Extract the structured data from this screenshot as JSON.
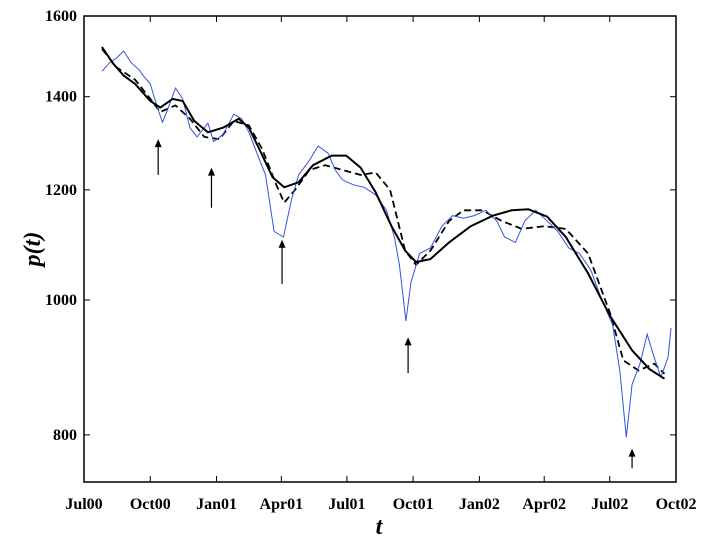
{
  "chart_data": {
    "type": "line",
    "title": "",
    "xlabel": "t",
    "ylabel": "p(t)",
    "x_tick_labels": [
      "Jul00",
      "Oct00",
      "Jan01",
      "Apr01",
      "Jul01",
      "Oct01",
      "Jan02",
      "Apr02",
      "Jul02",
      "Oct02"
    ],
    "x_tick_dates": [
      "2000-07-01",
      "2000-10-01",
      "2001-01-01",
      "2001-04-01",
      "2001-07-01",
      "2001-10-01",
      "2002-01-01",
      "2002-04-01",
      "2002-07-01",
      "2002-10-01"
    ],
    "xlim": [
      "2000-07-01",
      "2002-10-01"
    ],
    "y_scale": "log",
    "y_ticks": [
      800,
      1000,
      1200,
      1400,
      1600
    ],
    "ylim": [
      740,
      1600
    ],
    "grid": false,
    "series": [
      {
        "role": "observed",
        "color": "#3355dd",
        "points": [
          [
            "2000-07-26",
            1460
          ],
          [
            "2000-08-05",
            1480
          ],
          [
            "2000-08-15",
            1492
          ],
          [
            "2000-08-25",
            1510
          ],
          [
            "2000-09-05",
            1480
          ],
          [
            "2000-09-15",
            1465
          ],
          [
            "2000-09-22",
            1448
          ],
          [
            "2000-10-01",
            1430
          ],
          [
            "2000-10-10",
            1380
          ],
          [
            "2000-10-18",
            1342
          ],
          [
            "2000-10-25",
            1370
          ],
          [
            "2000-11-05",
            1420
          ],
          [
            "2000-11-15",
            1395
          ],
          [
            "2000-11-25",
            1330
          ],
          [
            "2000-12-05",
            1310
          ],
          [
            "2000-12-20",
            1340
          ],
          [
            "2000-12-28",
            1300
          ],
          [
            "2001-01-10",
            1315
          ],
          [
            "2001-01-25",
            1360
          ],
          [
            "2001-02-05",
            1350
          ],
          [
            "2001-02-15",
            1320
          ],
          [
            "2001-02-25",
            1280
          ],
          [
            "2001-03-10",
            1230
          ],
          [
            "2001-03-22",
            1120
          ],
          [
            "2001-04-04",
            1110
          ],
          [
            "2001-04-15",
            1180
          ],
          [
            "2001-04-25",
            1230
          ],
          [
            "2001-05-10",
            1260
          ],
          [
            "2001-05-22",
            1290
          ],
          [
            "2001-06-05",
            1275
          ],
          [
            "2001-06-15",
            1240
          ],
          [
            "2001-06-25",
            1220
          ],
          [
            "2001-07-10",
            1210
          ],
          [
            "2001-07-25",
            1205
          ],
          [
            "2001-08-10",
            1190
          ],
          [
            "2001-08-25",
            1160
          ],
          [
            "2001-09-05",
            1110
          ],
          [
            "2001-09-12",
            1060
          ],
          [
            "2001-09-21",
            966
          ],
          [
            "2001-09-28",
            1030
          ],
          [
            "2001-10-10",
            1080
          ],
          [
            "2001-10-25",
            1090
          ],
          [
            "2001-11-10",
            1130
          ],
          [
            "2001-11-25",
            1150
          ],
          [
            "2001-12-10",
            1145
          ],
          [
            "2001-12-25",
            1150
          ],
          [
            "2002-01-10",
            1160
          ],
          [
            "2002-01-25",
            1140
          ],
          [
            "2002-02-05",
            1110
          ],
          [
            "2002-02-20",
            1100
          ],
          [
            "2002-03-05",
            1140
          ],
          [
            "2002-03-20",
            1160
          ],
          [
            "2002-04-05",
            1140
          ],
          [
            "2002-04-20",
            1120
          ],
          [
            "2002-05-05",
            1090
          ],
          [
            "2002-05-20",
            1080
          ],
          [
            "2002-06-05",
            1050
          ],
          [
            "2002-06-20",
            1000
          ],
          [
            "2002-07-05",
            960
          ],
          [
            "2002-07-15",
            890
          ],
          [
            "2002-07-24",
            797
          ],
          [
            "2002-08-01",
            870
          ],
          [
            "2002-08-12",
            900
          ],
          [
            "2002-08-22",
            945
          ],
          [
            "2002-08-30",
            915
          ],
          [
            "2002-09-10",
            880
          ],
          [
            "2002-09-20",
            910
          ],
          [
            "2002-09-24",
            955
          ]
        ]
      },
      {
        "role": "fit-solid",
        "color": "#000000",
        "points": [
          [
            "2000-07-26",
            1520
          ],
          [
            "2000-08-10",
            1480
          ],
          [
            "2000-08-25",
            1450
          ],
          [
            "2000-09-10",
            1430
          ],
          [
            "2000-10-01",
            1390
          ],
          [
            "2000-10-15",
            1375
          ],
          [
            "2000-11-01",
            1395
          ],
          [
            "2000-11-15",
            1390
          ],
          [
            "2000-12-01",
            1345
          ],
          [
            "2000-12-20",
            1320
          ],
          [
            "2001-01-10",
            1330
          ],
          [
            "2001-02-01",
            1350
          ],
          [
            "2001-02-15",
            1330
          ],
          [
            "2001-03-01",
            1285
          ],
          [
            "2001-03-20",
            1225
          ],
          [
            "2001-04-05",
            1205
          ],
          [
            "2001-04-25",
            1215
          ],
          [
            "2001-05-15",
            1250
          ],
          [
            "2001-06-10",
            1270
          ],
          [
            "2001-06-30",
            1270
          ],
          [
            "2001-07-20",
            1245
          ],
          [
            "2001-08-10",
            1195
          ],
          [
            "2001-09-01",
            1130
          ],
          [
            "2001-09-20",
            1085
          ],
          [
            "2001-10-05",
            1065
          ],
          [
            "2001-10-25",
            1070
          ],
          [
            "2001-11-20",
            1100
          ],
          [
            "2001-12-20",
            1130
          ],
          [
            "2002-01-20",
            1150
          ],
          [
            "2002-02-15",
            1160
          ],
          [
            "2002-03-10",
            1162
          ],
          [
            "2002-04-05",
            1148
          ],
          [
            "2002-05-01",
            1110
          ],
          [
            "2002-06-01",
            1045
          ],
          [
            "2002-07-01",
            975
          ],
          [
            "2002-08-01",
            920
          ],
          [
            "2002-08-25",
            892
          ],
          [
            "2002-09-15",
            878
          ]
        ]
      },
      {
        "role": "fit-dashed",
        "color": "#000000",
        "points": [
          [
            "2000-07-26",
            1515
          ],
          [
            "2000-08-15",
            1470
          ],
          [
            "2000-09-10",
            1440
          ],
          [
            "2000-10-01",
            1395
          ],
          [
            "2000-10-15",
            1365
          ],
          [
            "2000-11-05",
            1380
          ],
          [
            "2000-11-25",
            1350
          ],
          [
            "2000-12-15",
            1310
          ],
          [
            "2001-01-05",
            1305
          ],
          [
            "2001-01-25",
            1345
          ],
          [
            "2001-02-15",
            1335
          ],
          [
            "2001-03-05",
            1285
          ],
          [
            "2001-03-25",
            1210
          ],
          [
            "2001-04-05",
            1175
          ],
          [
            "2001-04-20",
            1200
          ],
          [
            "2001-05-10",
            1240
          ],
          [
            "2001-06-01",
            1250
          ],
          [
            "2001-06-25",
            1240
          ],
          [
            "2001-07-20",
            1230
          ],
          [
            "2001-08-10",
            1235
          ],
          [
            "2001-08-30",
            1200
          ],
          [
            "2001-09-20",
            1085
          ],
          [
            "2001-10-05",
            1060
          ],
          [
            "2001-10-25",
            1085
          ],
          [
            "2001-11-20",
            1140
          ],
          [
            "2001-12-10",
            1160
          ],
          [
            "2002-01-05",
            1160
          ],
          [
            "2002-02-01",
            1140
          ],
          [
            "2002-03-01",
            1125
          ],
          [
            "2002-04-01",
            1130
          ],
          [
            "2002-05-01",
            1125
          ],
          [
            "2002-06-01",
            1080
          ],
          [
            "2002-07-01",
            980
          ],
          [
            "2002-07-20",
            905
          ],
          [
            "2002-08-10",
            890
          ],
          [
            "2002-09-01",
            900
          ],
          [
            "2002-09-15",
            885
          ]
        ]
      }
    ],
    "arrows": [
      {
        "date": "2000-10-12",
        "from": 1230,
        "to": 1305
      },
      {
        "date": "2000-12-25",
        "from": 1165,
        "to": 1245
      },
      {
        "date": "2001-04-02",
        "from": 1027,
        "to": 1105
      },
      {
        "date": "2001-09-24",
        "from": 886,
        "to": 940
      },
      {
        "date": "2002-08-01",
        "from": 757,
        "to": 782
      }
    ]
  }
}
